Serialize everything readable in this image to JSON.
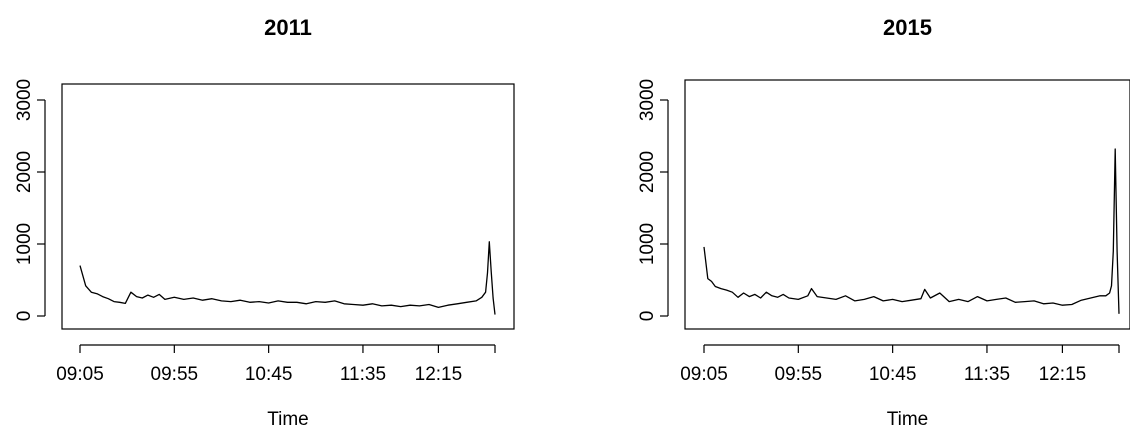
{
  "chart_data": [
    {
      "type": "line",
      "title": "2011",
      "xlabel": "Time",
      "ylabel": "",
      "ylim": [
        0,
        3250
      ],
      "xlim": [
        "09:05",
        "12:45"
      ],
      "xticks": [
        "09:05",
        "09:55",
        "10:45",
        "11:35",
        "12:15"
      ],
      "yticks": [
        0,
        1000,
        2000,
        3000
      ],
      "frame": "box",
      "grid": false,
      "series": [
        {
          "x": [
            "09:05",
            "09:08",
            "09:11",
            "09:14",
            "09:17",
            "09:20",
            "09:23",
            "09:26",
            "09:29",
            "09:32",
            "09:35",
            "09:38",
            "09:41",
            "09:44",
            "09:47",
            "09:50",
            "09:55",
            "10:00",
            "10:05",
            "10:10",
            "10:15",
            "10:20",
            "10:25",
            "10:30",
            "10:35",
            "10:40",
            "10:45",
            "10:50",
            "10:55",
            "11:00",
            "11:05",
            "11:10",
            "11:15",
            "11:20",
            "11:25",
            "11:30",
            "11:35",
            "11:40",
            "11:45",
            "11:50",
            "11:55",
            "12:00",
            "12:05",
            "12:10",
            "12:15",
            "12:20",
            "12:25",
            "12:30",
            "12:35",
            "12:38",
            "12:40",
            "12:41",
            "12:42",
            "12:43",
            "12:44",
            "12:45"
          ],
          "values": [
            700,
            420,
            330,
            310,
            270,
            240,
            200,
            190,
            175,
            330,
            270,
            250,
            290,
            260,
            300,
            230,
            260,
            230,
            250,
            220,
            240,
            210,
            200,
            220,
            190,
            200,
            180,
            210,
            190,
            190,
            170,
            200,
            190,
            210,
            170,
            160,
            150,
            170,
            140,
            150,
            130,
            150,
            140,
            160,
            120,
            150,
            170,
            190,
            210,
            260,
            330,
            600,
            1030,
            620,
            250,
            20
          ]
        }
      ]
    },
    {
      "type": "line",
      "title": "2015",
      "xlabel": "Time",
      "ylabel": "",
      "ylim": [
        0,
        3250
      ],
      "xlim": [
        "09:05",
        "12:45"
      ],
      "xticks": [
        "09:05",
        "09:55",
        "10:45",
        "11:35",
        "12:15"
      ],
      "yticks": [
        0,
        1000,
        2000,
        3000
      ],
      "frame": "box",
      "grid": false,
      "series": [
        {
          "x": [
            "09:05",
            "09:07",
            "09:09",
            "09:11",
            "09:14",
            "09:17",
            "09:20",
            "09:23",
            "09:26",
            "09:29",
            "09:32",
            "09:35",
            "09:38",
            "09:41",
            "09:44",
            "09:47",
            "09:50",
            "09:55",
            "10:00",
            "10:02",
            "10:05",
            "10:10",
            "10:15",
            "10:20",
            "10:25",
            "10:30",
            "10:35",
            "10:40",
            "10:45",
            "10:50",
            "10:55",
            "11:00",
            "11:02",
            "11:05",
            "11:10",
            "11:15",
            "11:20",
            "11:25",
            "11:30",
            "11:35",
            "11:40",
            "11:45",
            "11:50",
            "11:55",
            "12:00",
            "12:05",
            "12:10",
            "12:15",
            "12:20",
            "12:25",
            "12:30",
            "12:35",
            "12:38",
            "12:40",
            "12:41",
            "12:42",
            "12:43",
            "12:44",
            "12:45"
          ],
          "values": [
            960,
            520,
            480,
            410,
            380,
            360,
            330,
            260,
            320,
            270,
            300,
            250,
            330,
            280,
            260,
            300,
            250,
            230,
            280,
            380,
            270,
            250,
            230,
            280,
            210,
            230,
            270,
            210,
            230,
            200,
            220,
            240,
            370,
            250,
            320,
            200,
            230,
            200,
            270,
            210,
            230,
            250,
            190,
            200,
            210,
            170,
            180,
            150,
            160,
            220,
            250,
            280,
            280,
            320,
            420,
            900,
            2320,
            900,
            30
          ]
        }
      ]
    }
  ]
}
